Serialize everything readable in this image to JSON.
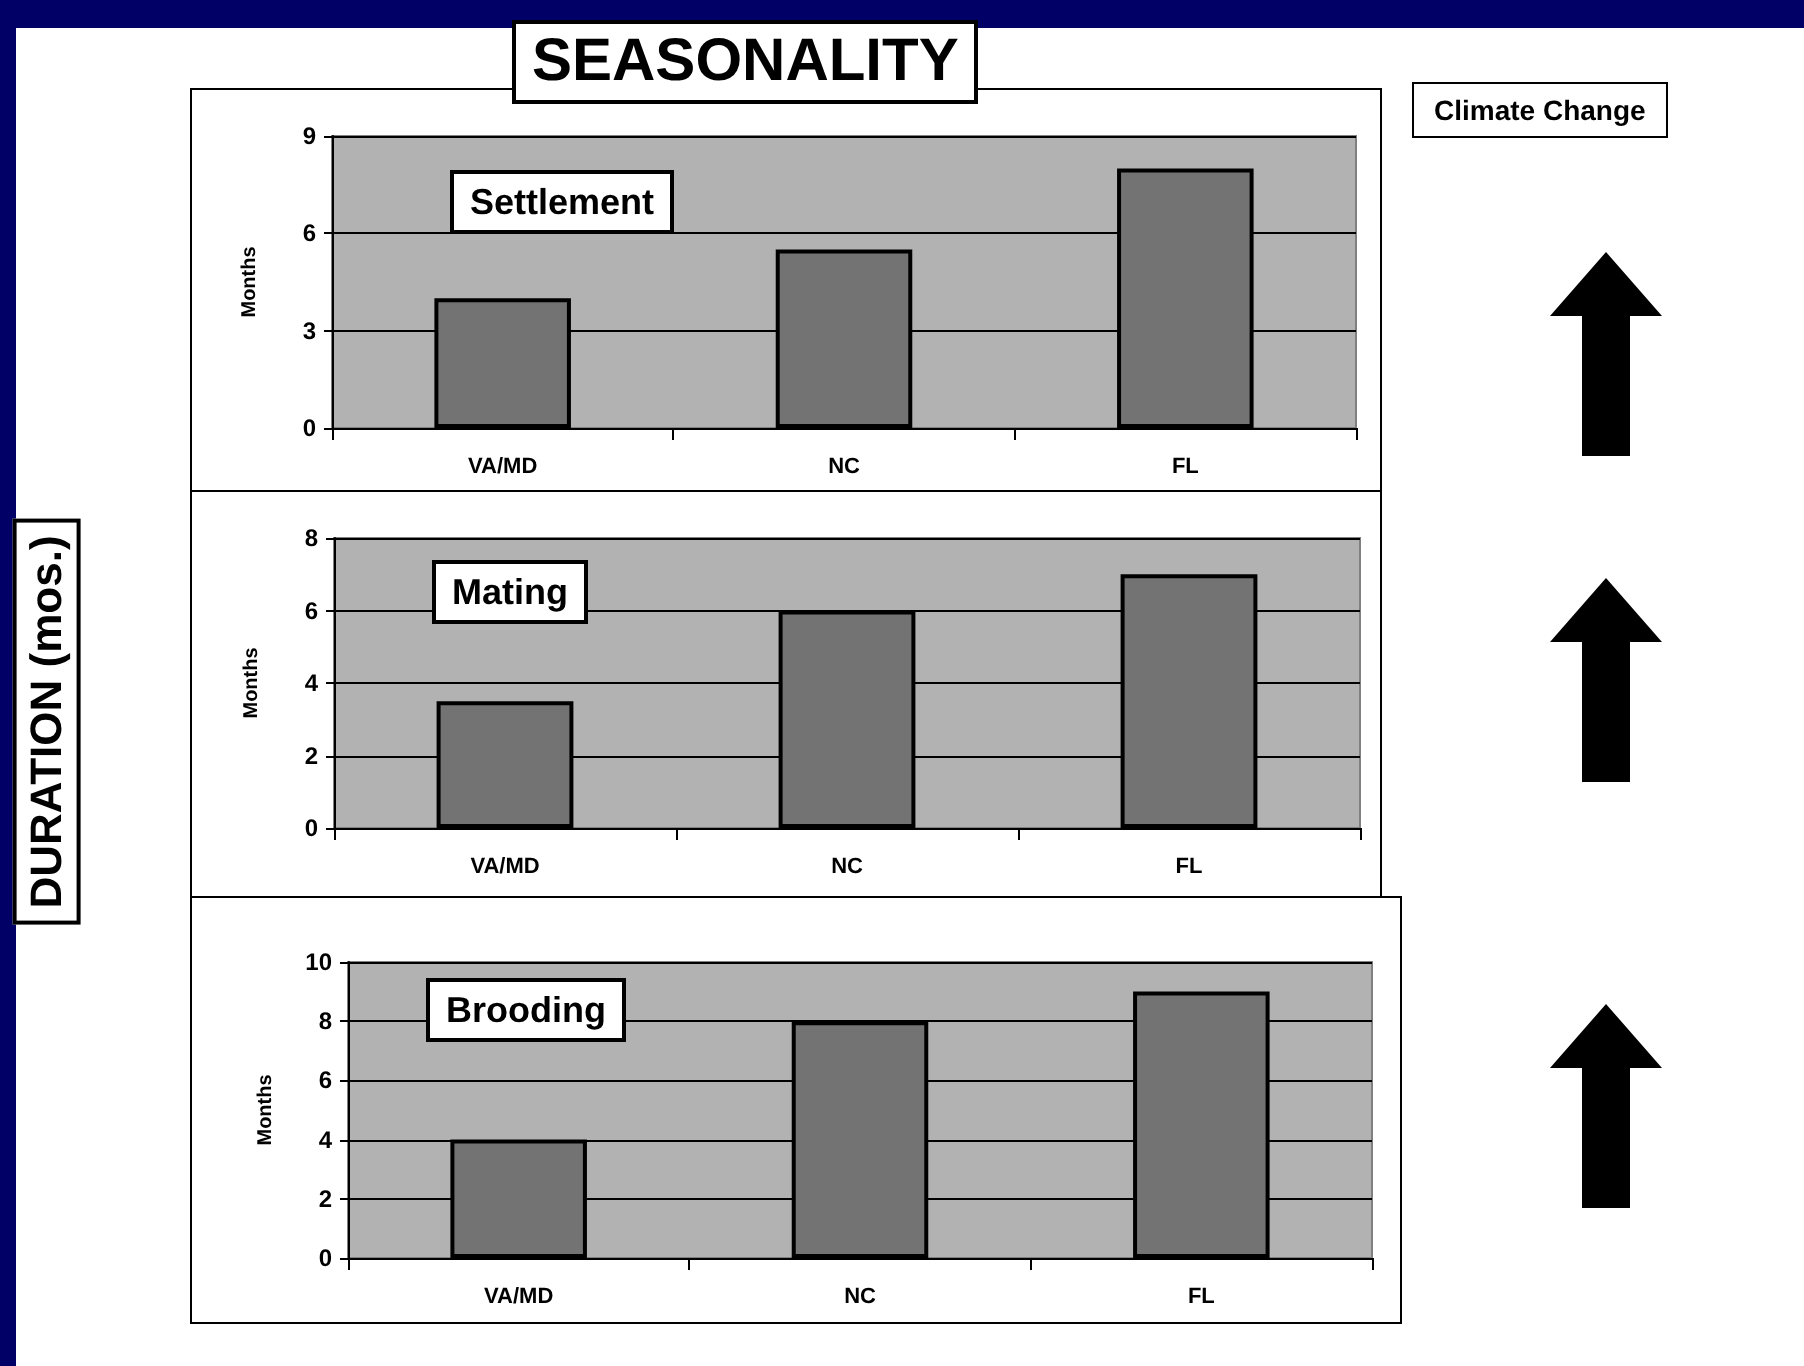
{
  "chart_data": [
    {
      "type": "bar",
      "title": "Settlement",
      "ylabel": "Months",
      "categories": [
        "VA/MD",
        "NC",
        "FL"
      ],
      "values": [
        4,
        5.5,
        8
      ],
      "color": "#737373",
      "ylim": [
        0,
        9
      ],
      "yticks": [
        0,
        3,
        6,
        9
      ],
      "grid": "y",
      "annotations": [
        "SEASONALITY",
        "DURATION (mos.)",
        "Climate Change"
      ]
    },
    {
      "type": "bar",
      "title": "Mating",
      "ylabel": "Months",
      "categories": [
        "VA/MD",
        "NC",
        "FL"
      ],
      "values": [
        3.5,
        6,
        7
      ],
      "color": "#737373",
      "ylim": [
        0,
        8
      ],
      "yticks": [
        0,
        2,
        4,
        6,
        8
      ],
      "grid": "y"
    },
    {
      "type": "bar",
      "title": "Brooding",
      "ylabel": "Months",
      "categories": [
        "VA/MD",
        "NC",
        "FL"
      ],
      "values": [
        4,
        8,
        9
      ],
      "color": "#737373",
      "ylim": [
        0,
        10
      ],
      "yticks": [
        0,
        2,
        4,
        6,
        8,
        10
      ],
      "grid": "y"
    }
  ]
}
